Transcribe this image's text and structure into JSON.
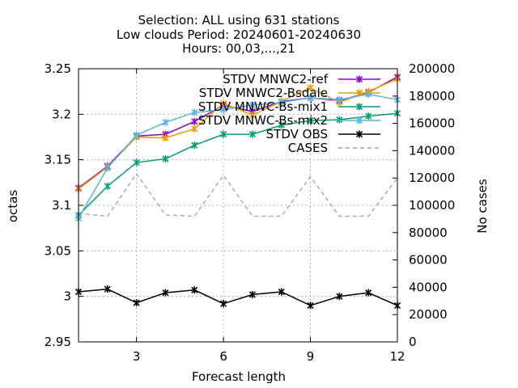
{
  "chart_data": {
    "type": "line",
    "title_lines": [
      "Selection: ALL using   631 stations",
      "Low clouds   Period: 20240601-20240630",
      "Hours: 00,03,...,21"
    ],
    "xlabel": "Forecast length",
    "ylabel": "octas",
    "y2label": "No cases",
    "xlim": [
      1,
      12
    ],
    "ylim": [
      2.95,
      3.25
    ],
    "y2lim": [
      0,
      200000
    ],
    "xticks": [
      3,
      6,
      9,
      12
    ],
    "yticks": [
      2.95,
      3,
      3.05,
      3.1,
      3.15,
      3.2,
      3.25
    ],
    "ytick_labels": [
      "2.95",
      "3",
      "3.05",
      "3.1",
      "3.15",
      "3.2",
      "3.25"
    ],
    "y2ticks": [
      0,
      20000,
      40000,
      60000,
      80000,
      100000,
      120000,
      140000,
      160000,
      180000,
      200000
    ],
    "grid": true,
    "legend_position": "top-right",
    "x": [
      1,
      2,
      3,
      4,
      5,
      6,
      7,
      8,
      9,
      10,
      11,
      12
    ],
    "series": [
      {
        "name": "STDV MNWC2-ref",
        "axis": "y",
        "color": "#9400d3",
        "marker": "x",
        "values": [
          3.119,
          3.143,
          3.176,
          3.178,
          3.192,
          3.21,
          3.203,
          3.214,
          3.218,
          3.215,
          3.224,
          3.241
        ]
      },
      {
        "name": "STDV MNWC2-Bsdale",
        "axis": "y",
        "color": "#e69f00",
        "marker": "x",
        "values": [
          3.118,
          3.142,
          3.175,
          3.174,
          3.184,
          3.212,
          3.199,
          3.214,
          3.229,
          3.213,
          3.225,
          3.239
        ]
      },
      {
        "name": "STDV MNWC-Bs-mix1",
        "axis": "y",
        "color": "#009e73",
        "marker": "x",
        "values": [
          3.089,
          3.121,
          3.147,
          3.151,
          3.166,
          3.178,
          3.178,
          3.188,
          3.193,
          3.194,
          3.198,
          3.201
        ]
      },
      {
        "name": "STDV MNWC-Bs-mix2",
        "axis": "y",
        "color": "#56b4e9",
        "marker": "x",
        "values": [
          3.086,
          3.141,
          3.177,
          3.191,
          3.202,
          3.205,
          3.21,
          3.213,
          3.218,
          3.216,
          3.222,
          3.216
        ]
      },
      {
        "name": "STDV OBS",
        "axis": "y",
        "color": "#000000",
        "marker": "x",
        "values": [
          3.005,
          3.008,
          2.993,
          3.004,
          3.007,
          2.992,
          3.002,
          3.005,
          2.99,
          3.0,
          3.004,
          2.99
        ]
      },
      {
        "name": "CASES",
        "axis": "y2",
        "color": "#a0a0a0",
        "marker": "none",
        "dash": true,
        "values": [
          94000,
          92000,
          123000,
          93000,
          92000,
          122000,
          92000,
          92000,
          121000,
          92000,
          92000,
          120000
        ]
      }
    ]
  }
}
